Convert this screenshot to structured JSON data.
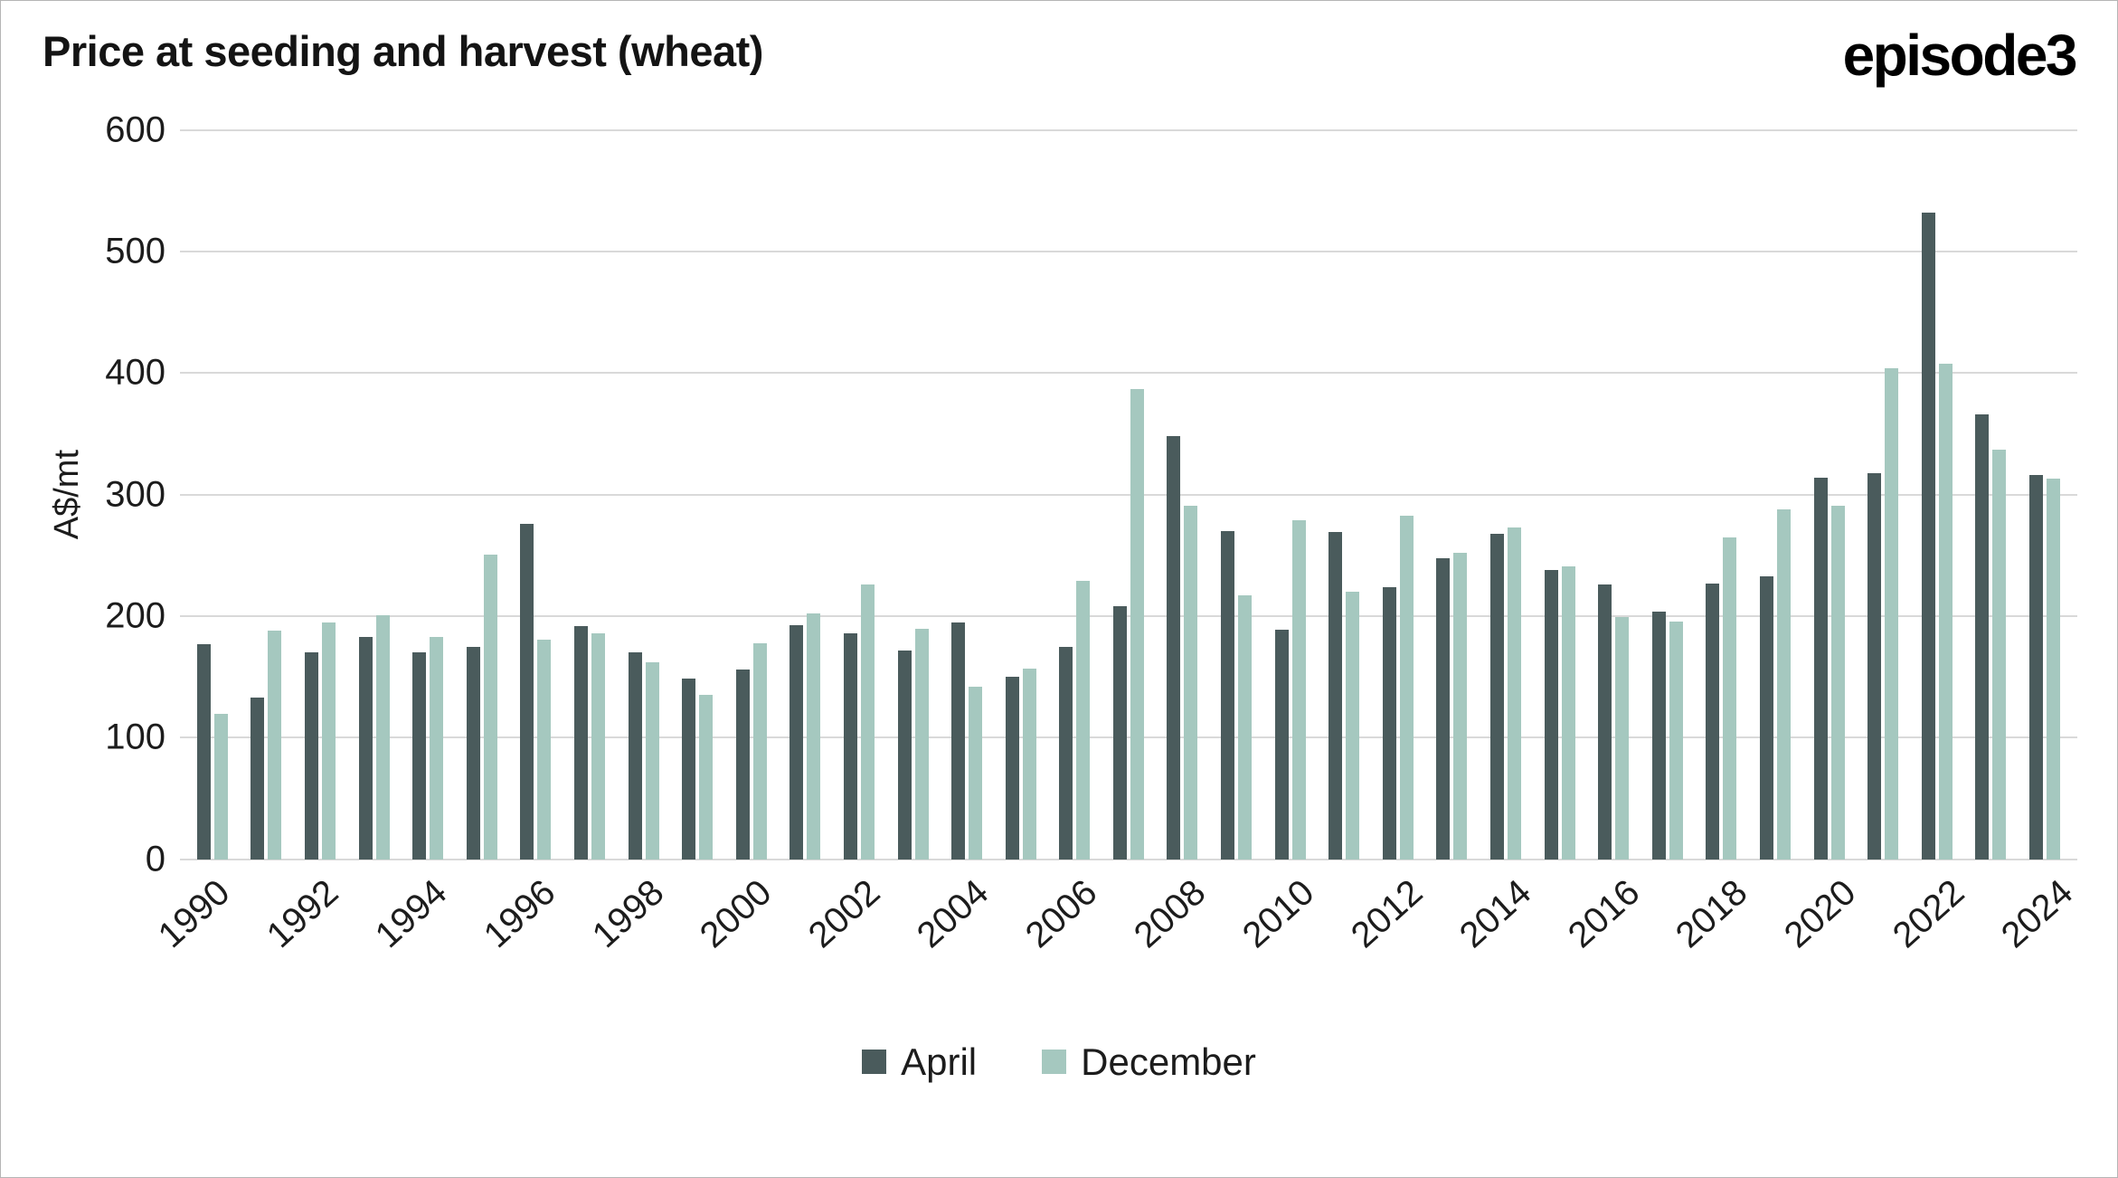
{
  "header": {
    "title": "Price at seeding and harvest (wheat)",
    "logo_text": "episode3"
  },
  "colors": {
    "april": "#4a5b5c",
    "december": "#a5c8bf",
    "gridline": "#d9d9d9",
    "text": "#1c1c1c",
    "frame_border": "#b5b5b5"
  },
  "chart_data": {
    "type": "bar",
    "title": "Price at seeding and harvest (wheat)",
    "xlabel": "",
    "ylabel": "A$/mt",
    "ylim": [
      0,
      600
    ],
    "yticks": [
      0,
      100,
      200,
      300,
      400,
      500,
      600
    ],
    "grid": "horizontal",
    "legend_position": "bottom",
    "categories": [
      1990,
      1991,
      1992,
      1993,
      1994,
      1995,
      1996,
      1997,
      1998,
      1999,
      2000,
      2001,
      2002,
      2003,
      2004,
      2005,
      2006,
      2007,
      2008,
      2009,
      2010,
      2011,
      2012,
      2013,
      2014,
      2015,
      2016,
      2017,
      2018,
      2019,
      2020,
      2021,
      2022,
      2023,
      2024
    ],
    "x_tick_labels": [
      1990,
      1992,
      1994,
      1996,
      1998,
      2000,
      2002,
      2004,
      2006,
      2008,
      2010,
      2012,
      2014,
      2016,
      2018,
      2020,
      2022,
      2024
    ],
    "series": [
      {
        "name": "April",
        "color": "#4a5b5c",
        "values": [
          177,
          133,
          170,
          183,
          170,
          175,
          276,
          192,
          170,
          149,
          156,
          193,
          186,
          172,
          195,
          150,
          175,
          208,
          348,
          270,
          189,
          269,
          224,
          248,
          268,
          238,
          226,
          204,
          227,
          233,
          314,
          318,
          532,
          366,
          316
        ]
      },
      {
        "name": "December",
        "color": "#a5c8bf",
        "values": [
          120,
          188,
          195,
          201,
          183,
          251,
          181,
          186,
          162,
          135,
          178,
          202,
          226,
          190,
          142,
          157,
          229,
          387,
          291,
          217,
          279,
          220,
          283,
          252,
          273,
          241,
          199,
          196,
          265,
          288,
          291,
          404,
          408,
          337,
          313
        ]
      }
    ]
  }
}
